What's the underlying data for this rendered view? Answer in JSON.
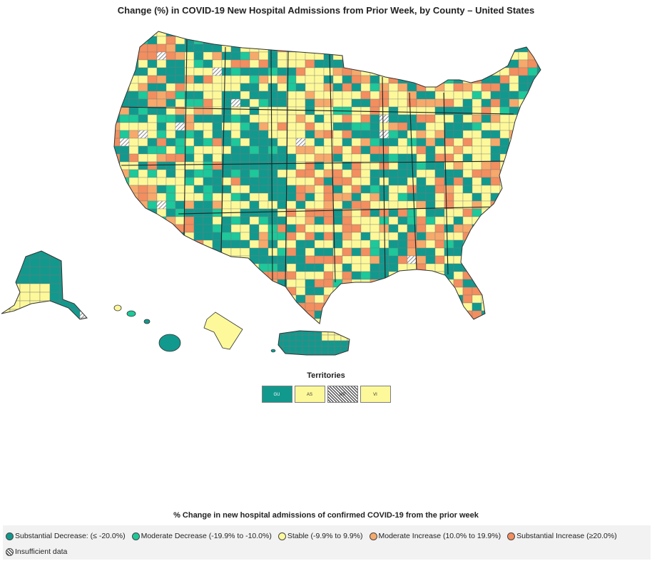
{
  "title": "Change (%) in COVID-19 New Hospital Admissions from Prior Week, by County – United States",
  "colors": {
    "substantial_decrease": "#12998e",
    "moderate_decrease": "#1dc89a",
    "stable": "#fdf99a",
    "moderate_increase": "#f6a96b",
    "substantial_increase": "#f28e5f",
    "insufficient": "#b5b5b5",
    "border": "#555555"
  },
  "territories": {
    "title": "Territories",
    "items": [
      {
        "code": "GU",
        "category": "substantial_decrease"
      },
      {
        "code": "AS",
        "category": "stable"
      },
      {
        "code": "MP",
        "category": "insufficient"
      },
      {
        "code": "VI",
        "category": "stable"
      }
    ]
  },
  "legend": {
    "title": "% Change in new hospital admissions of confirmed COVID-19 from the prior week",
    "items": [
      {
        "label": "Substantial Decrease: (≤ -20.0%)",
        "category": "substantial_decrease"
      },
      {
        "label": "Moderate Decrease (-19.9% to -10.0%)",
        "category": "moderate_decrease"
      },
      {
        "label": "Stable (-9.9% to 9.9%)",
        "category": "stable"
      },
      {
        "label": "Moderate Increase (10.0% to 19.9%)",
        "category": "moderate_increase"
      },
      {
        "label": "Substantial Increase (≥20.0%)",
        "category": "substantial_increase"
      },
      {
        "label": "Insufficient data",
        "category": "insufficient"
      }
    ]
  }
}
